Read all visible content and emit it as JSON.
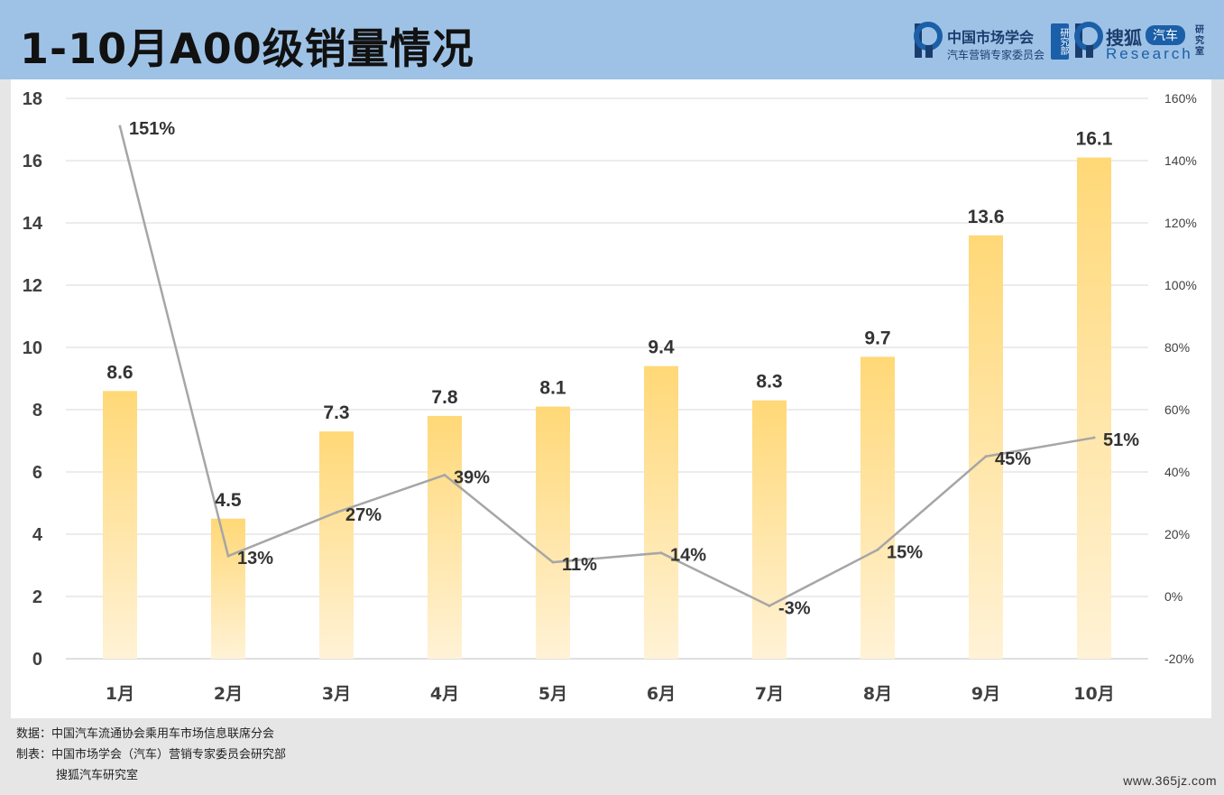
{
  "header": {
    "title": "1-10月A00级销量情况",
    "logo1": {
      "line1": "中国市场学会",
      "line2": "汽车营销专家委员会",
      "tag": "研究部"
    },
    "logo2": {
      "line1": "搜狐",
      "pill": "汽车",
      "line2": "Research",
      "tag": "研究室"
    },
    "colors": {
      "header_bg": "#9ec2e6",
      "logo": "#1b5fa8"
    }
  },
  "chart_data": {
    "type": "bar",
    "categories": [
      "1月",
      "2月",
      "3月",
      "4月",
      "5月",
      "6月",
      "7月",
      "8月",
      "9月",
      "10月"
    ],
    "series": [
      {
        "type": "bar",
        "values": [
          8.6,
          4.5,
          7.3,
          7.8,
          8.1,
          9.4,
          8.3,
          9.7,
          13.6,
          16.1
        ],
        "color": "#ffd877",
        "axis": "left"
      },
      {
        "type": "line",
        "values": [
          151,
          13,
          27,
          39,
          11,
          14,
          -3,
          15,
          45,
          51
        ],
        "labels": [
          "151%",
          "13%",
          "27%",
          "39%",
          "11%",
          "14%",
          "-3%",
          "15%",
          "45%",
          "51%"
        ],
        "color": "#a6a6a6",
        "axis": "right"
      }
    ],
    "bar_labels": [
      "8.6",
      "4.5",
      "7.3",
      "7.8",
      "8.1",
      "9.4",
      "8.3",
      "9.7",
      "13.6",
      "16.1"
    ],
    "y_left": {
      "ylim": [
        0,
        18
      ],
      "ticks": [
        "0",
        "2",
        "4",
        "6",
        "8",
        "10",
        "12",
        "14",
        "16",
        "18"
      ]
    },
    "y_right": {
      "ylim": [
        -20,
        160
      ],
      "ticks": [
        "-20%",
        "0%",
        "20%",
        "40%",
        "60%",
        "80%",
        "100%",
        "120%",
        "140%",
        "160%"
      ]
    },
    "grid": true,
    "legend": false
  },
  "footer": {
    "source": "数据：中国汽车流通协会乘用车市场信息联席分会",
    "maker": "制表：中国市场学会（汽车）营销专家委员会研究部",
    "maker2": "搜狐汽车研究室",
    "watermark": "www.365jz.com"
  }
}
